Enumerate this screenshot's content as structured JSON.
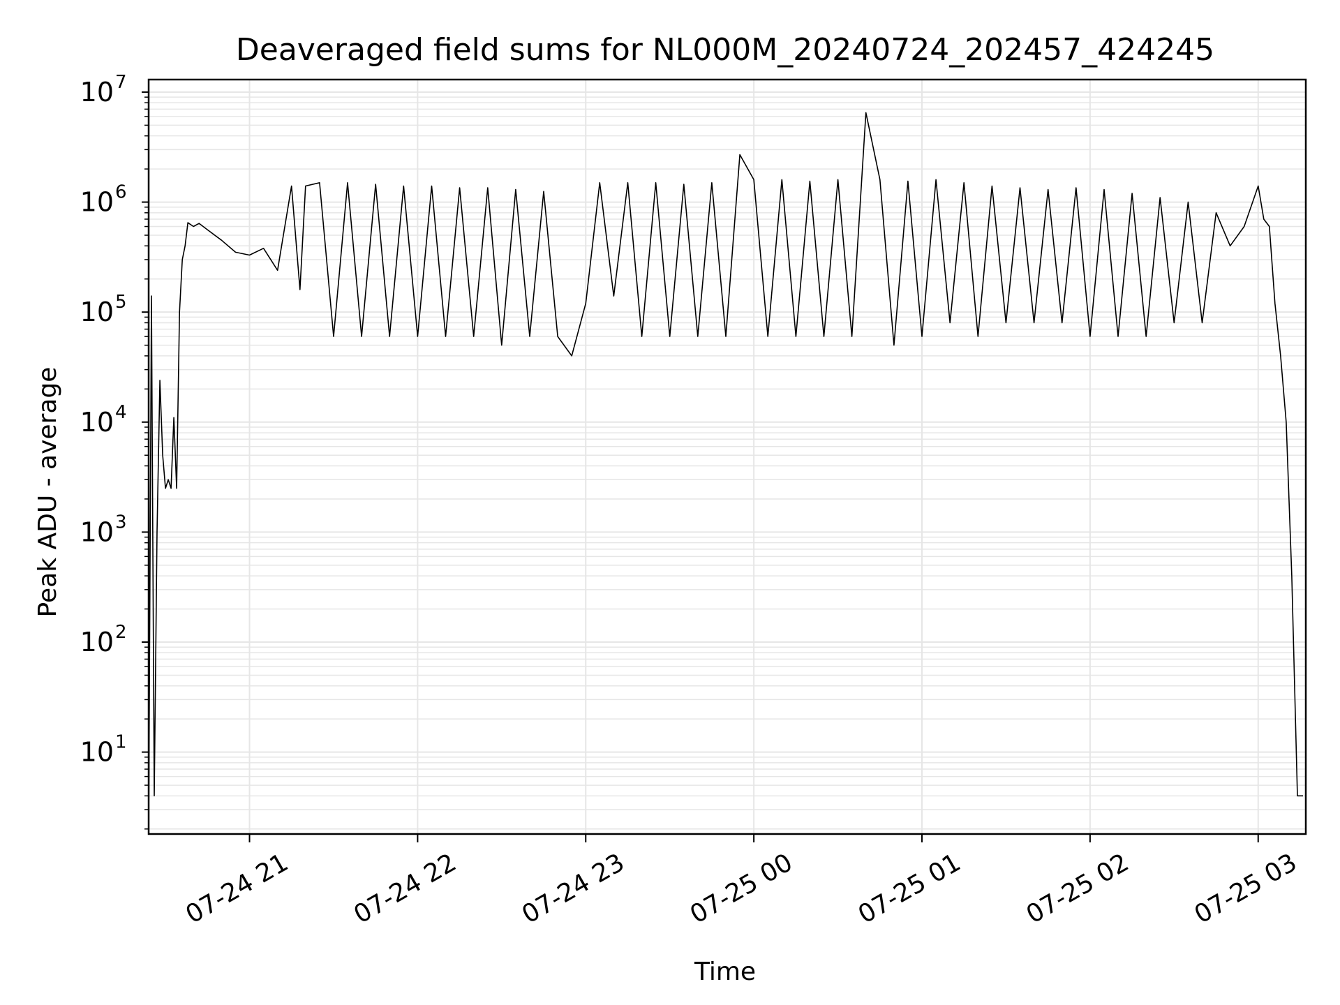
{
  "chart_data": {
    "type": "line",
    "title": "Deaveraged field sums for NL000M_20240724_202457_424245",
    "xlabel": "Time",
    "ylabel": "Peak ADU - average",
    "yscale": "log",
    "ylim": [
      1.8,
      13000000
    ],
    "xlim": [
      "2024-07-24 20:24",
      "2024-07-25 03:17"
    ],
    "grid": true,
    "line_color": "#000000",
    "grid_color": "#e6e6e6",
    "x_ticks": [
      {
        "value": "2024-07-24 21:00",
        "label": "07-24 21"
      },
      {
        "value": "2024-07-24 22:00",
        "label": "07-24 22"
      },
      {
        "value": "2024-07-24 23:00",
        "label": "07-24 23"
      },
      {
        "value": "2024-07-25 00:00",
        "label": "07-25 00"
      },
      {
        "value": "2024-07-25 01:00",
        "label": "07-25 01"
      },
      {
        "value": "2024-07-25 02:00",
        "label": "07-25 02"
      },
      {
        "value": "2024-07-25 03:00",
        "label": "07-25 03"
      }
    ],
    "y_ticks": [
      {
        "value": 10,
        "base": "10",
        "exp": "1"
      },
      {
        "value": 100,
        "base": "10",
        "exp": "2"
      },
      {
        "value": 1000,
        "base": "10",
        "exp": "3"
      },
      {
        "value": 10000,
        "base": "10",
        "exp": "4"
      },
      {
        "value": 100000,
        "base": "10",
        "exp": "5"
      },
      {
        "value": 1000000,
        "base": "10",
        "exp": "6"
      },
      {
        "value": 10000000,
        "base": "10",
        "exp": "7"
      }
    ],
    "series": [
      {
        "x": [
          "2024-07-24 20:24",
          "2024-07-24 20:25",
          "2024-07-24 20:26",
          "2024-07-24 20:27",
          "2024-07-24 20:28",
          "2024-07-24 20:29",
          "2024-07-24 20:30",
          "2024-07-24 20:31",
          "2024-07-24 20:32",
          "2024-07-24 20:33",
          "2024-07-24 20:34",
          "2024-07-24 20:35",
          "2024-07-24 20:36",
          "2024-07-24 20:37",
          "2024-07-24 20:38",
          "2024-07-24 20:40",
          "2024-07-24 20:42",
          "2024-07-24 20:45",
          "2024-07-24 20:50",
          "2024-07-24 20:55",
          "2024-07-24 21:00",
          "2024-07-24 21:05",
          "2024-07-24 21:10",
          "2024-07-24 21:15",
          "2024-07-24 21:18",
          "2024-07-24 21:20",
          "2024-07-24 21:25",
          "2024-07-24 21:30",
          "2024-07-24 21:35",
          "2024-07-24 21:40",
          "2024-07-24 21:45",
          "2024-07-24 21:50",
          "2024-07-24 21:55",
          "2024-07-24 22:00",
          "2024-07-24 22:05",
          "2024-07-24 22:10",
          "2024-07-24 22:15",
          "2024-07-24 22:20",
          "2024-07-24 22:25",
          "2024-07-24 22:30",
          "2024-07-24 22:35",
          "2024-07-24 22:40",
          "2024-07-24 22:45",
          "2024-07-24 22:50",
          "2024-07-24 22:55",
          "2024-07-24 23:00",
          "2024-07-24 23:05",
          "2024-07-24 23:10",
          "2024-07-24 23:15",
          "2024-07-24 23:20",
          "2024-07-24 23:25",
          "2024-07-24 23:30",
          "2024-07-24 23:35",
          "2024-07-24 23:40",
          "2024-07-24 23:45",
          "2024-07-24 23:50",
          "2024-07-24 23:55",
          "2024-07-25 00:00",
          "2024-07-25 00:05",
          "2024-07-25 00:10",
          "2024-07-25 00:15",
          "2024-07-25 00:20",
          "2024-07-25 00:25",
          "2024-07-25 00:30",
          "2024-07-25 00:35",
          "2024-07-25 00:40",
          "2024-07-25 00:45",
          "2024-07-25 00:50",
          "2024-07-25 00:55",
          "2024-07-25 01:00",
          "2024-07-25 01:05",
          "2024-07-25 01:10",
          "2024-07-25 01:15",
          "2024-07-25 01:20",
          "2024-07-25 01:25",
          "2024-07-25 01:30",
          "2024-07-25 01:35",
          "2024-07-25 01:40",
          "2024-07-25 01:45",
          "2024-07-25 01:50",
          "2024-07-25 01:55",
          "2024-07-25 02:00",
          "2024-07-25 02:05",
          "2024-07-25 02:10",
          "2024-07-25 02:15",
          "2024-07-25 02:20",
          "2024-07-25 02:25",
          "2024-07-25 02:30",
          "2024-07-25 02:35",
          "2024-07-25 02:40",
          "2024-07-25 02:45",
          "2024-07-25 02:50",
          "2024-07-25 02:55",
          "2024-07-25 03:00",
          "2024-07-25 03:02",
          "2024-07-25 03:04",
          "2024-07-25 03:06",
          "2024-07-25 03:08",
          "2024-07-25 03:10",
          "2024-07-25 03:12",
          "2024-07-25 03:14",
          "2024-07-25 03:16"
        ],
        "y": [
          2,
          140000,
          4,
          1000,
          24000,
          5000,
          2500,
          3000,
          2500,
          11000,
          2500,
          100000,
          300000,
          400000,
          650000,
          600000,
          640000,
          560000,
          450000,
          350000,
          330000,
          380000,
          240000,
          1400000,
          160000,
          1400000,
          1500000,
          60000,
          1500000,
          60000,
          1450000,
          60000,
          1400000,
          60000,
          1400000,
          60000,
          1350000,
          60000,
          1350000,
          50000,
          1300000,
          60000,
          1250000,
          60000,
          40000,
          120000,
          1500000,
          140000,
          1500000,
          60000,
          1500000,
          60000,
          1450000,
          60000,
          1500000,
          60000,
          2700000,
          1600000,
          60000,
          1600000,
          60000,
          1550000,
          60000,
          1600000,
          60000,
          6500000,
          1600000,
          50000,
          1550000,
          60000,
          1600000,
          80000,
          1500000,
          60000,
          1400000,
          80000,
          1350000,
          80000,
          1300000,
          80000,
          1350000,
          60000,
          1300000,
          60000,
          1200000,
          60000,
          1100000,
          80000,
          1000000,
          80000,
          800000,
          400000,
          600000,
          1400000,
          700000,
          600000,
          120000,
          40000,
          10000,
          400,
          4,
          4
        ]
      }
    ]
  }
}
